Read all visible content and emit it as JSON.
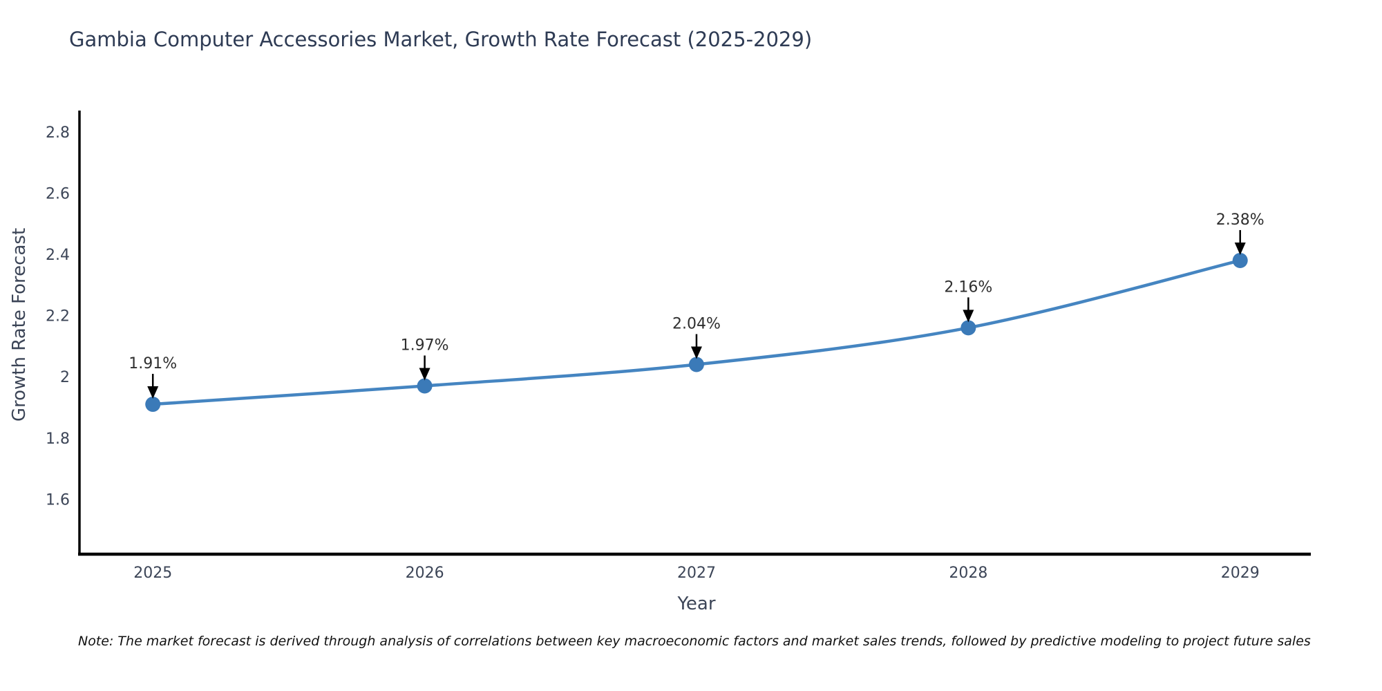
{
  "chart_data": {
    "type": "line",
    "title": "Gambia Computer Accessories Market, Growth Rate Forecast (2025-2029)",
    "xlabel": "Year",
    "ylabel": "Growth Rate Forecast",
    "x": [
      2025,
      2026,
      2027,
      2028,
      2029
    ],
    "values": [
      1.91,
      1.97,
      2.04,
      2.16,
      2.38
    ],
    "point_labels": [
      "1.91%",
      "1.97%",
      "2.04%",
      "2.16%",
      "2.38%"
    ],
    "x_tick_labels": [
      "2025",
      "2026",
      "2027",
      "2028",
      "2029"
    ],
    "y_ticks": [
      1.6,
      1.8,
      2,
      2.2,
      2.4,
      2.6,
      2.8
    ],
    "y_tick_labels": [
      "1.6",
      "1.8",
      "2",
      "2.2",
      "2.4",
      "2.6",
      "2.8"
    ],
    "xlim": [
      2024.73,
      2029.26
    ],
    "ylim": [
      1.42,
      2.87
    ],
    "grid": false,
    "legend": "none",
    "line_color": "#4585c1",
    "marker_color": "#3b7ab8",
    "axis_line_color": "#000000",
    "tick_label_color": "#3c4557",
    "annotation_text_color": "#2f2f2f",
    "annotation_arrow_color": "#000000"
  },
  "note": "Note: The market forecast is derived through analysis of correlations between key macroeconomic factors and market sales trends, followed by predictive modeling to project future sales"
}
